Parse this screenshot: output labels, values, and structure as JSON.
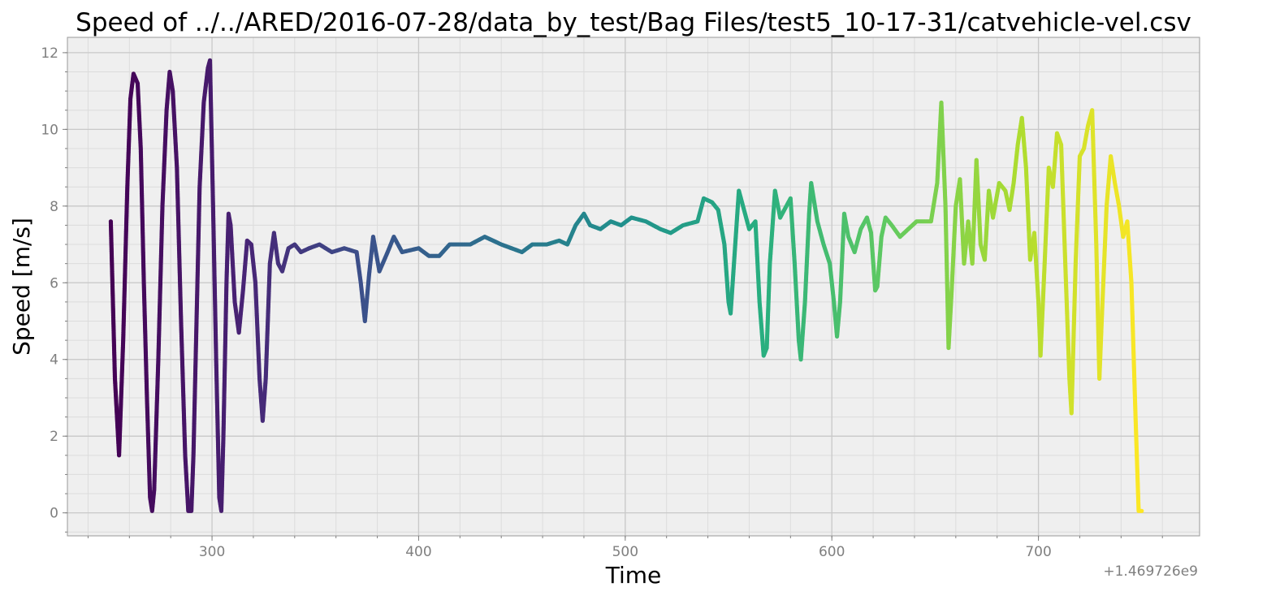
{
  "chart_data": {
    "type": "scatter",
    "title": "Speed of ../../ARED/2016-07-28/data_by_test/Bag Files/test5_10-17-31/catvehicle-vel.csv",
    "xlabel": "Time",
    "ylabel": "Speed [m/s]",
    "x_offset_label": "+1.469726e9",
    "xlim": [
      230,
      778
    ],
    "ylim": [
      -0.6,
      12.4
    ],
    "x_ticks": [
      300,
      400,
      500,
      600,
      700
    ],
    "y_ticks": [
      0,
      2,
      4,
      6,
      8,
      10,
      12
    ],
    "x_minor_step": 20,
    "y_minor_step": 0.5,
    "grid": true,
    "colormap": "viridis",
    "colors": {
      "background": "#efefef",
      "major_grid": "#c9c9c9",
      "minor_grid": "#dcdcdc",
      "frame": "#9a9a9a",
      "tick_label": "#7f7f7f"
    },
    "x_range": [
      251,
      750
    ],
    "keypoints": [
      [
        251,
        7.6
      ],
      [
        253,
        3.5
      ],
      [
        255,
        1.5
      ],
      [
        257,
        4.5
      ],
      [
        259,
        8.5
      ],
      [
        260.5,
        10.8
      ],
      [
        262,
        11.45
      ],
      [
        264,
        11.2
      ],
      [
        265.5,
        9.5
      ],
      [
        267,
        6.0
      ],
      [
        268.5,
        3.0
      ],
      [
        270,
        0.4
      ],
      [
        271,
        0.05
      ],
      [
        272,
        0.6
      ],
      [
        274,
        4.0
      ],
      [
        276,
        8.0
      ],
      [
        278,
        10.5
      ],
      [
        279.5,
        11.5
      ],
      [
        281,
        11.0
      ],
      [
        283,
        9.0
      ],
      [
        285,
        5.0
      ],
      [
        287,
        1.5
      ],
      [
        288.5,
        0.05
      ],
      [
        290,
        0.05
      ],
      [
        291,
        1.5
      ],
      [
        292.5,
        5.0
      ],
      [
        294,
        8.5
      ],
      [
        296,
        10.7
      ],
      [
        298,
        11.6
      ],
      [
        299,
        11.8
      ],
      [
        300.5,
        8.0
      ],
      [
        302,
        4.0
      ],
      [
        303.5,
        0.4
      ],
      [
        304.5,
        0.05
      ],
      [
        305.5,
        2.0
      ],
      [
        307,
        6.0
      ],
      [
        308,
        7.8
      ],
      [
        309,
        7.5
      ],
      [
        311,
        5.5
      ],
      [
        313,
        4.7
      ],
      [
        315,
        5.8
      ],
      [
        317,
        7.1
      ],
      [
        319,
        7.0
      ],
      [
        321,
        6.0
      ],
      [
        323,
        3.5
      ],
      [
        324.5,
        2.4
      ],
      [
        326,
        3.5
      ],
      [
        328,
        6.5
      ],
      [
        330,
        7.3
      ],
      [
        332,
        6.5
      ],
      [
        334,
        6.3
      ],
      [
        337,
        6.9
      ],
      [
        340,
        7.0
      ],
      [
        343,
        6.8
      ],
      [
        347,
        6.9
      ],
      [
        352,
        7.0
      ],
      [
        358,
        6.8
      ],
      [
        364,
        6.9
      ],
      [
        370,
        6.8
      ],
      [
        372,
        6.0
      ],
      [
        374,
        5.0
      ],
      [
        376,
        6.2
      ],
      [
        378,
        7.2
      ],
      [
        381,
        6.3
      ],
      [
        385,
        6.8
      ],
      [
        388,
        7.2
      ],
      [
        392,
        6.8
      ],
      [
        400,
        6.9
      ],
      [
        405,
        6.7
      ],
      [
        410,
        6.7
      ],
      [
        415,
        7.0
      ],
      [
        425,
        7.0
      ],
      [
        432,
        7.2
      ],
      [
        440,
        7.0
      ],
      [
        445,
        6.9
      ],
      [
        450,
        6.8
      ],
      [
        455,
        7.0
      ],
      [
        462,
        7.0
      ],
      [
        468,
        7.1
      ],
      [
        472,
        7.0
      ],
      [
        476,
        7.5
      ],
      [
        480,
        7.8
      ],
      [
        483,
        7.5
      ],
      [
        488,
        7.4
      ],
      [
        493,
        7.6
      ],
      [
        498,
        7.5
      ],
      [
        503,
        7.7
      ],
      [
        510,
        7.6
      ],
      [
        517,
        7.4
      ],
      [
        522,
        7.3
      ],
      [
        528,
        7.5
      ],
      [
        535,
        7.6
      ],
      [
        538,
        8.2
      ],
      [
        542,
        8.1
      ],
      [
        545,
        7.9
      ],
      [
        548,
        7.0
      ],
      [
        550,
        5.5
      ],
      [
        551,
        5.2
      ],
      [
        553,
        6.8
      ],
      [
        555,
        8.4
      ],
      [
        557,
        8.0
      ],
      [
        560,
        7.4
      ],
      [
        563,
        7.6
      ],
      [
        565,
        5.5
      ],
      [
        567,
        4.1
      ],
      [
        568.5,
        4.3
      ],
      [
        570,
        6.5
      ],
      [
        572.5,
        8.4
      ],
      [
        575,
        7.7
      ],
      [
        578,
        8.0
      ],
      [
        580,
        8.2
      ],
      [
        582,
        6.5
      ],
      [
        584,
        4.5
      ],
      [
        585,
        4.0
      ],
      [
        587,
        5.5
      ],
      [
        589,
        7.8
      ],
      [
        590,
        8.6
      ],
      [
        593,
        7.6
      ],
      [
        596,
        7.0
      ],
      [
        599,
        6.5
      ],
      [
        601,
        5.5
      ],
      [
        602.5,
        4.6
      ],
      [
        604,
        5.5
      ],
      [
        606,
        7.8
      ],
      [
        608,
        7.2
      ],
      [
        611,
        6.8
      ],
      [
        614,
        7.4
      ],
      [
        617,
        7.7
      ],
      [
        619,
        7.3
      ],
      [
        621,
        5.8
      ],
      [
        622,
        5.9
      ],
      [
        624,
        7.2
      ],
      [
        626,
        7.7
      ],
      [
        629,
        7.5
      ],
      [
        633,
        7.2
      ],
      [
        637,
        7.4
      ],
      [
        641,
        7.6
      ],
      [
        645,
        7.6
      ],
      [
        648,
        7.6
      ],
      [
        651,
        8.6
      ],
      [
        653,
        10.7
      ],
      [
        655,
        8.0
      ],
      [
        656.5,
        4.3
      ],
      [
        658,
        5.8
      ],
      [
        660,
        8.0
      ],
      [
        662,
        8.7
      ],
      [
        664,
        6.5
      ],
      [
        666,
        7.6
      ],
      [
        668,
        6.5
      ],
      [
        670,
        9.2
      ],
      [
        672,
        7.0
      ],
      [
        674,
        6.6
      ],
      [
        676,
        8.4
      ],
      [
        678,
        7.7
      ],
      [
        681,
        8.6
      ],
      [
        684,
        8.4
      ],
      [
        686,
        7.9
      ],
      [
        688,
        8.6
      ],
      [
        690,
        9.6
      ],
      [
        692,
        10.3
      ],
      [
        694,
        9.0
      ],
      [
        696,
        6.6
      ],
      [
        698,
        7.3
      ],
      [
        700,
        5.5
      ],
      [
        701,
        4.1
      ],
      [
        703,
        6.5
      ],
      [
        705,
        9.0
      ],
      [
        707,
        8.5
      ],
      [
        709,
        9.9
      ],
      [
        711,
        9.6
      ],
      [
        713,
        6.5
      ],
      [
        715,
        3.5
      ],
      [
        716,
        2.6
      ],
      [
        718,
        6.5
      ],
      [
        720,
        9.3
      ],
      [
        722,
        9.5
      ],
      [
        724,
        10.1
      ],
      [
        726,
        10.5
      ],
      [
        728,
        7.0
      ],
      [
        729.5,
        3.5
      ],
      [
        731,
        5.5
      ],
      [
        733,
        8.0
      ],
      [
        735,
        9.3
      ],
      [
        737,
        8.6
      ],
      [
        739,
        8.0
      ],
      [
        741,
        7.2
      ],
      [
        743,
        7.6
      ],
      [
        745,
        6.0
      ],
      [
        747,
        2.5
      ],
      [
        748.5,
        0.05
      ],
      [
        750,
        0.05
      ]
    ]
  }
}
